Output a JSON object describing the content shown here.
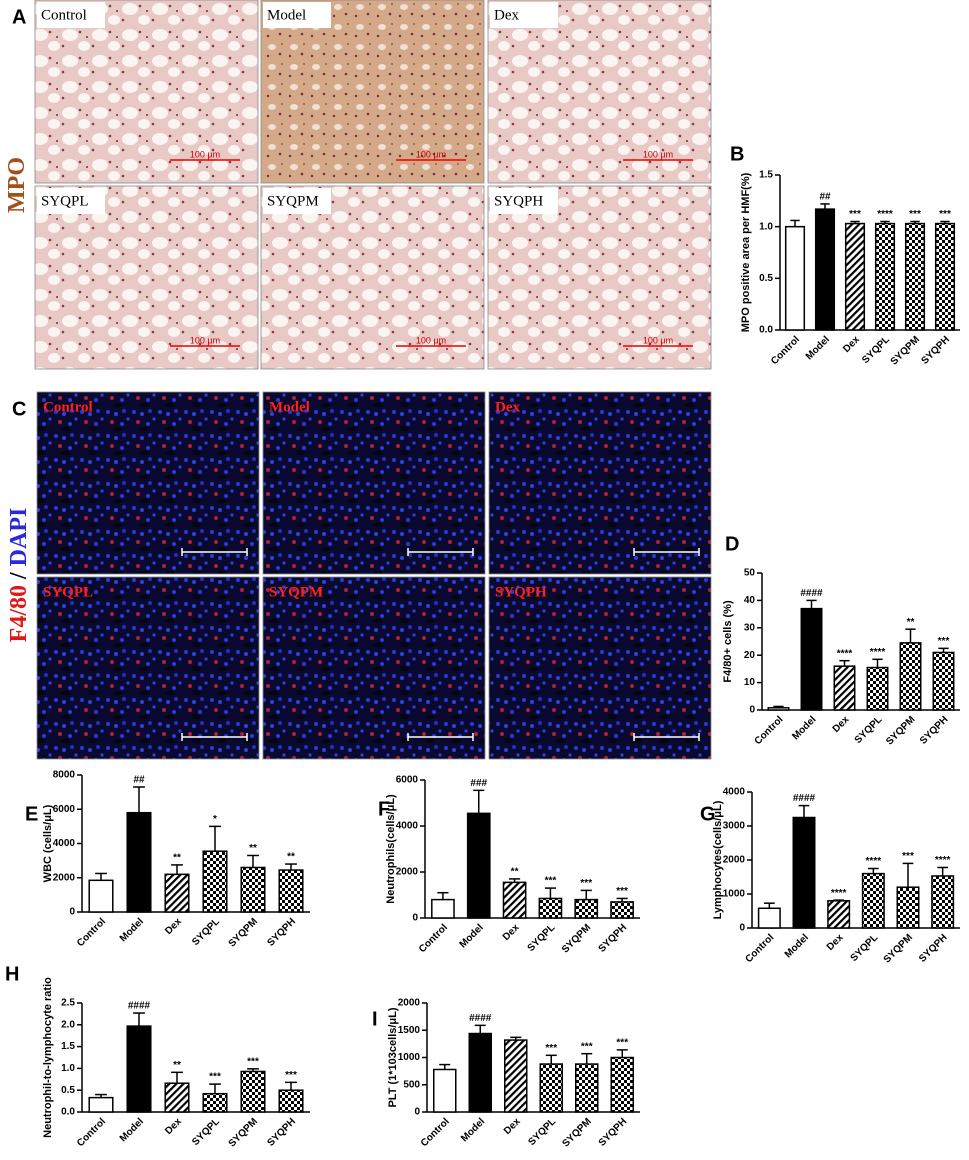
{
  "image_panels": [
    {
      "letter": "A",
      "side_label": [
        "MPO"
      ],
      "images": [
        {
          "label": "Control",
          "scale": "100 μm"
        },
        {
          "label": "Model",
          "scale": "100 μm"
        },
        {
          "label": "Dex",
          "scale": "100 μm"
        },
        {
          "label": "SYQPL",
          "scale": "100 μm"
        },
        {
          "label": "SYQPM",
          "scale": "100 μm"
        },
        {
          "label": "SYQPH",
          "scale": "100 μm"
        }
      ]
    },
    {
      "letter": "C",
      "side_label": [
        "F4/80",
        " / ",
        "DAPI"
      ],
      "images": [
        {
          "label": "Control"
        },
        {
          "label": "Model"
        },
        {
          "label": "Dex"
        },
        {
          "label": "SYQPL"
        },
        {
          "label": "SYQPM"
        },
        {
          "label": "SYQPH"
        }
      ]
    }
  ],
  "chart_data": [
    {
      "type": "bar",
      "panel": "B",
      "y_label": "MPO positive area per HMF(%)",
      "categories": [
        "Control",
        "Model",
        "Dex",
        "SYQPL",
        "SYQPM",
        "SYQPH"
      ],
      "values": [
        1.0,
        1.17,
        1.03,
        1.03,
        1.03,
        1.03
      ],
      "errors": [
        0.06,
        0.05,
        0.02,
        0.02,
        0.02,
        0.02
      ],
      "significance": [
        null,
        "##",
        "***",
        "****",
        "***",
        "***"
      ],
      "fills": [
        "white",
        "black",
        "hatch",
        "checker",
        "checker",
        "checker"
      ],
      "ylim": [
        0,
        1.5
      ],
      "yticks": [
        {
          "value": 0,
          "label": "0.0"
        },
        0.5,
        {
          "value": 1,
          "label": "1.0"
        },
        1.5
      ]
    },
    {
      "type": "bar",
      "panel": "D",
      "y_label": "F4/80+ cells (%)",
      "categories": [
        "Control",
        "Model",
        "Dex",
        "SYQPL",
        "SYQPM",
        "SYQPH"
      ],
      "values": [
        0.8,
        37,
        16,
        15.5,
        24.5,
        21
      ],
      "errors": [
        0.5,
        3,
        2,
        3,
        5,
        1.5
      ],
      "significance": [
        null,
        "####",
        "****",
        "****",
        "**",
        "***"
      ],
      "fills": [
        "white",
        "black",
        "hatch",
        "checker",
        "checker",
        "checker"
      ],
      "ylim": [
        0,
        50
      ],
      "yticks": [
        0,
        10,
        20,
        30,
        40,
        50
      ]
    },
    {
      "type": "bar",
      "panel": "E",
      "y_label": "WBC (cells/μL)",
      "categories": [
        "Control",
        "Model",
        "Dex",
        "SYQPL",
        "SYQPM",
        "SYQPH"
      ],
      "values": [
        1850,
        5800,
        2200,
        3550,
        2600,
        2450
      ],
      "errors": [
        400,
        1500,
        550,
        1450,
        700,
        350
      ],
      "significance": [
        null,
        "##",
        "**",
        "*",
        "**",
        "**"
      ],
      "fills": [
        "white",
        "black",
        "hatch",
        "checker",
        "checker",
        "checker"
      ],
      "ylim": [
        0,
        8000
      ],
      "yticks": [
        0,
        2000,
        4000,
        6000,
        8000
      ]
    },
    {
      "type": "bar",
      "panel": "F",
      "y_label": "Neutrophils(cells/μL)",
      "categories": [
        "Control",
        "Model",
        "Dex",
        "SYQPL",
        "SYQPM",
        "SYQPH"
      ],
      "values": [
        800,
        4550,
        1550,
        850,
        800,
        700
      ],
      "errors": [
        300,
        1000,
        150,
        450,
        400,
        150
      ],
      "significance": [
        null,
        "###",
        "**",
        "***",
        "***",
        "***"
      ],
      "fills": [
        "white",
        "black",
        "hatch",
        "checker",
        "checker",
        "checker"
      ],
      "ylim": [
        0,
        6000
      ],
      "yticks": [
        0,
        2000,
        4000,
        6000
      ]
    },
    {
      "type": "bar",
      "panel": "G",
      "y_label": "Lymphocytes(cells/μL)",
      "categories": [
        "Control",
        "Model",
        "Dex",
        "SYQPL",
        "SYQPM",
        "SYQPH"
      ],
      "values": [
        580,
        3250,
        800,
        1600,
        1200,
        1530
      ],
      "errors": [
        150,
        350,
        20,
        150,
        700,
        250
      ],
      "significance": [
        null,
        "####",
        "****",
        "****",
        "***",
        "****"
      ],
      "fills": [
        "white",
        "black",
        "hatch",
        "checker",
        "checker",
        "checker"
      ],
      "ylim": [
        0,
        4000
      ],
      "yticks": [
        0,
        1000,
        2000,
        3000,
        4000
      ]
    },
    {
      "type": "bar",
      "panel": "H",
      "y_label": "Neutrophil-to-lymphocyte ratio",
      "categories": [
        "Control",
        "Model",
        "Dex",
        "SYQPL",
        "SYQPM",
        "SYQPH"
      ],
      "values": [
        0.33,
        1.97,
        0.66,
        0.42,
        0.93,
        0.5
      ],
      "errors": [
        0.07,
        0.3,
        0.25,
        0.22,
        0.06,
        0.18
      ],
      "significance": [
        null,
        "####",
        "**",
        "***",
        "***",
        "***"
      ],
      "fills": [
        "white",
        "black",
        "hatch",
        "checker",
        "checker",
        "checker"
      ],
      "ylim": [
        0,
        2.5
      ],
      "yticks": [
        {
          "value": 0,
          "label": "0.0"
        },
        0.5,
        {
          "value": 1,
          "label": "1.0"
        },
        1.5,
        {
          "value": 2,
          "label": "2.0"
        },
        2.5
      ]
    },
    {
      "type": "bar",
      "panel": "I",
      "y_label": "PLT (1*103cells/μL)",
      "categories": [
        "Control",
        "Model",
        "Dex",
        "SYQPL",
        "SYQPM",
        "SYQPH"
      ],
      "values": [
        780,
        1440,
        1320,
        880,
        880,
        1000
      ],
      "errors": [
        90,
        150,
        50,
        160,
        190,
        140
      ],
      "significance": [
        null,
        "####",
        null,
        "***",
        "***",
        "***"
      ],
      "fills": [
        "white",
        "black",
        "hatch",
        "checker",
        "checker",
        "checker"
      ],
      "ylim": [
        0,
        2000
      ],
      "yticks": [
        0,
        500,
        1000,
        1500,
        2000
      ]
    }
  ]
}
